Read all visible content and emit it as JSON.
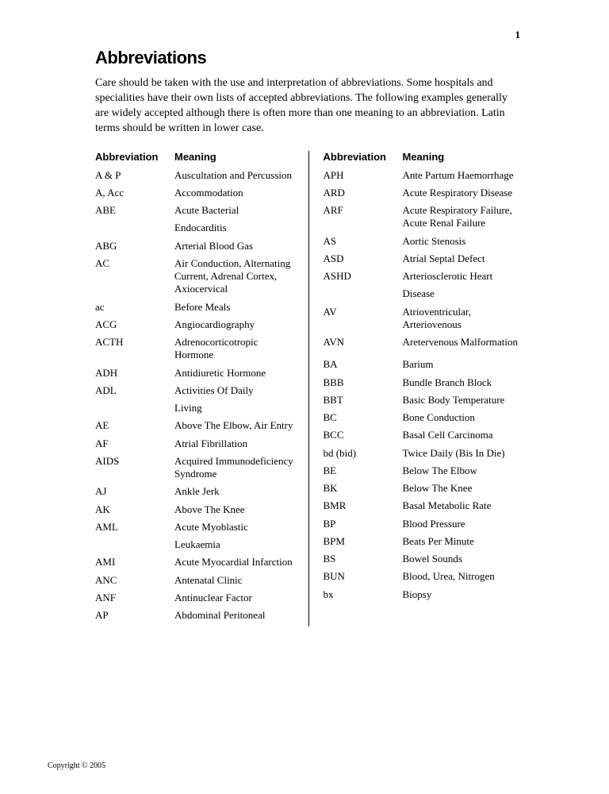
{
  "pageNumber": "1",
  "title": "Abbreviations",
  "intro": "Care should be taken with the use and interpretation of abbreviations.  Some hospitals and specialities have their own lists of accepted abbreviations. The following examples generally are widely accepted although there is often more than one meaning to an abbreviation.   Latin terms should be written in lower case.",
  "headers": {
    "abbr": "Abbreviation",
    "meaning": "Meaning"
  },
  "left": [
    {
      "abbr": "A & P",
      "meaning": "Auscultation and Percussion"
    },
    {
      "abbr": "A, Acc",
      "meaning": "Accommodation"
    },
    {
      "abbr": "ABE",
      "meaning": "Acute Bacterial"
    },
    {
      "abbr": "",
      "meaning": "Endocarditis"
    },
    {
      "abbr": "ABG",
      "meaning": "Arterial Blood Gas"
    },
    {
      "abbr": "AC",
      "meaning": "Air Conduction, Alternating Current, Adrenal Cortex, Axiocervical"
    },
    {
      "abbr": "ac",
      "meaning": "Before Meals"
    },
    {
      "abbr": "ACG",
      "meaning": "Angiocardiography"
    },
    {
      "abbr": "ACTH",
      "meaning": "Adrenocorticotropic Hormone"
    },
    {
      "abbr": "ADH",
      "meaning": "Antidiuretic Hormone"
    },
    {
      "abbr": "ADL",
      "meaning": "Activities Of Daily"
    },
    {
      "abbr": "",
      "meaning": "Living"
    },
    {
      "abbr": "AE",
      "meaning": "Above The Elbow, Air Entry"
    },
    {
      "abbr": "AF",
      "meaning": "Atrial Fibrillation"
    },
    {
      "abbr": "AIDS",
      "meaning": "Acquired Immunodeficiency Syndrome"
    },
    {
      "abbr": "AJ",
      "meaning": "Ankle Jerk"
    },
    {
      "abbr": "AK",
      "meaning": "Above The Knee"
    },
    {
      "abbr": "AML",
      "meaning": "Acute Myoblastic"
    },
    {
      "abbr": "",
      "meaning": "Leukaemia"
    },
    {
      "abbr": "AMI",
      "meaning": "Acute Myocardial Infarction"
    },
    {
      "abbr": "ANC",
      "meaning": "Antenatal Clinic"
    },
    {
      "abbr": "ANF",
      "meaning": "Antinuclear Factor"
    },
    {
      "abbr": "AP",
      "meaning": "Abdominal Peritoneal"
    }
  ],
  "right": [
    {
      "abbr": "APH",
      "meaning": "Ante Partum Haemorrhage"
    },
    {
      "abbr": "ARD",
      "meaning": "Acute Respiratory Disease"
    },
    {
      "abbr": "ARF",
      "meaning": "Acute Respiratory Failure, Acute Renal Failure"
    },
    {
      "abbr": "AS",
      "meaning": "Aortic Stenosis"
    },
    {
      "abbr": "ASD",
      "meaning": "Atrial Septal Defect"
    },
    {
      "abbr": "ASHD",
      "meaning": "Arteriosclerotic Heart"
    },
    {
      "abbr": "",
      "meaning": "Disease"
    },
    {
      "abbr": "AV",
      "meaning": "Atrioventricular, Arteriovenous"
    },
    {
      "abbr": "AVN",
      "meaning": "Aretervenous Malformation"
    },
    {
      "abbr": "",
      "meaning": ""
    },
    {
      "abbr": "BA",
      "meaning": "Barium"
    },
    {
      "abbr": "BBB",
      "meaning": "Bundle Branch Block"
    },
    {
      "abbr": "BBT",
      "meaning": "Basic Body Temperature"
    },
    {
      "abbr": "BC",
      "meaning": "Bone Conduction"
    },
    {
      "abbr": "BCC",
      "meaning": "Basal Cell Carcinoma"
    },
    {
      "abbr": "bd (bid)",
      "meaning": "Twice Daily (Bis In Die)"
    },
    {
      "abbr": "BE",
      "meaning": "Below The Elbow"
    },
    {
      "abbr": "BK",
      "meaning": "Below The Knee"
    },
    {
      "abbr": "BMR",
      "meaning": "Basal Metabolic Rate"
    },
    {
      "abbr": "BP",
      "meaning": "Blood Pressure"
    },
    {
      "abbr": "BPM",
      "meaning": "Beats Per Minute"
    },
    {
      "abbr": "BS",
      "meaning": "Bowel Sounds"
    },
    {
      "abbr": "BUN",
      "meaning": "Blood, Urea, Nitrogen"
    },
    {
      "abbr": "bx",
      "meaning": "Biopsy"
    }
  ],
  "footer": "Copyright © 2005"
}
